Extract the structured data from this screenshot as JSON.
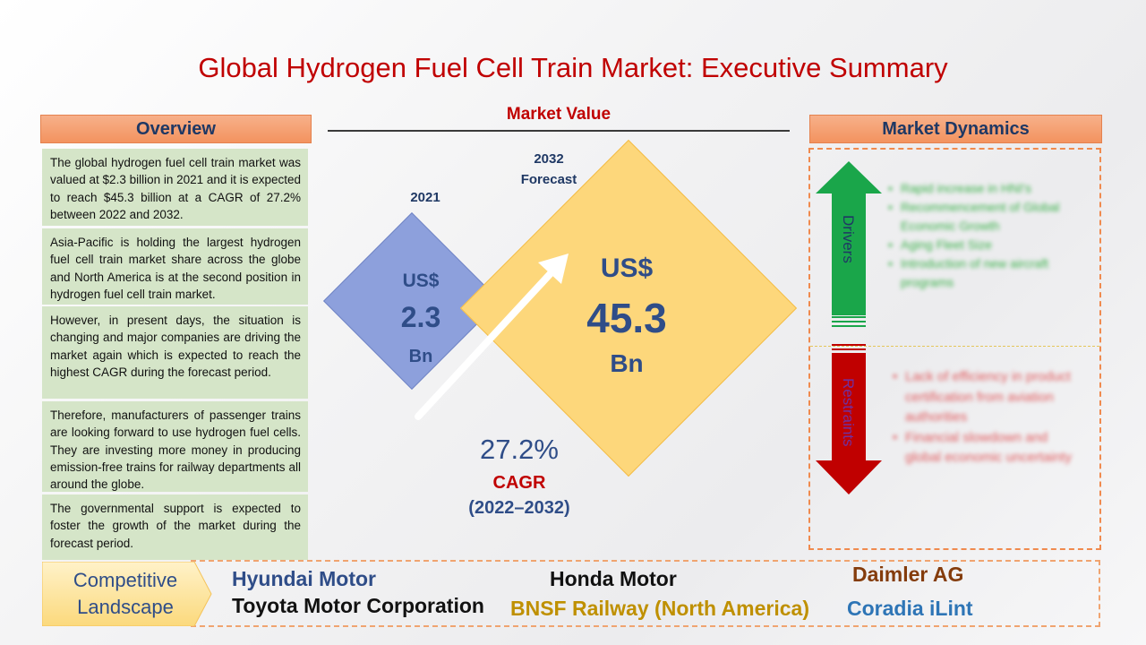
{
  "title": "Global Hydrogen Fuel Cell Train Market: Executive Summary",
  "overview": {
    "header": "Overview",
    "paragraphs": [
      "The global hydrogen fuel cell train market was valued at $2.3 billion in 2021 and it is expected to reach $45.3 billion at a CAGR of 27.2% between 2022 and 2032.",
      "Asia-Pacific is holding the largest hydrogen fuel cell train market share across the globe and North America is at the second position in hydrogen fuel cell train market.",
      "However, in present days, the situation is changing and major companies are driving the market again which is expected to reach the highest CAGR during the forecast period.",
      "Therefore, manufacturers of passenger trains are looking forward to use hydrogen fuel cells. They are investing more money in producing emission-free trains for railway departments all around the globe.",
      "The governmental support is expected to foster the growth of the market during the forecast period."
    ]
  },
  "market_value": {
    "header": "Market Value",
    "year_2021": "2021",
    "year_2032": "2032",
    "forecast_label": "Forecast",
    "small": {
      "currency": "US$",
      "amount": "2.3",
      "unit": "Bn"
    },
    "big": {
      "currency": "US$",
      "amount": "45.3",
      "unit": "Bn"
    },
    "cagr_value": "27.2%",
    "cagr_label": "CAGR",
    "cagr_period": "(2022–2032)"
  },
  "market_dynamics": {
    "header": "Market Dynamics",
    "drivers_label": "Drivers",
    "restraints_label": "Restraints",
    "drivers": [
      "Rapid increase in HNI's",
      "Recommencement of Global Economic Growth",
      "Aging Fleet Size",
      "Introduction of new aircraft programs"
    ],
    "restraints": [
      "Lack of efficiency in product certification from aviation authorities",
      "Financial slowdown and global economic uncertainty"
    ],
    "colors": {
      "drivers_arrow": "#1aa64a",
      "restraints_arrow": "#c00000"
    }
  },
  "competitive_landscape": {
    "label_line1": "Competitive",
    "label_line2": "Landscape",
    "companies": {
      "hyundai": "Hyundai Motor",
      "honda": "Honda Motor",
      "daimler": "Daimler AG",
      "toyota": "Toyota Motor Corporation",
      "bnsf": "BNSF Railway (North America)",
      "coradia": "Coradia iLint"
    },
    "colors": {
      "hyundai": "#2f4d88",
      "honda": "#111111",
      "daimler": "#843c0c",
      "toyota": "#111111",
      "bnsf": "#bf9000",
      "coradia": "#2e75b6"
    }
  }
}
